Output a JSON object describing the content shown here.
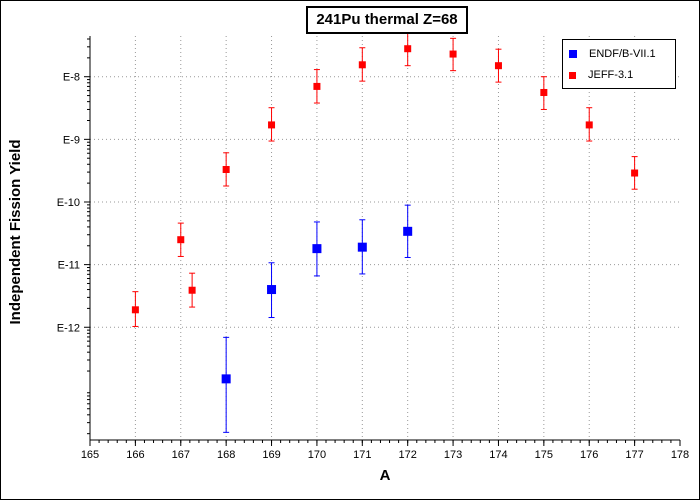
{
  "chart_data": {
    "type": "scatter",
    "title": "241Pu thermal Z=68",
    "xlabel": "A",
    "ylabel": "Independent Fission Yield",
    "xlim": [
      165,
      178
    ],
    "ylim_exponent": [
      -13.8,
      -7.35
    ],
    "yscale": "log",
    "grid": true,
    "legend_position": "top-right",
    "x_ticks": [
      "165",
      "166",
      "167",
      "168",
      "169",
      "170",
      "171",
      "172",
      "173",
      "174",
      "175",
      "176",
      "177",
      "178"
    ],
    "y_ticks": [
      {
        "exp": -8,
        "label": "E-8"
      },
      {
        "exp": -9,
        "label": "E-9"
      },
      {
        "exp": -10,
        "label": "E-10"
      },
      {
        "exp": -11,
        "label": "E-11"
      },
      {
        "exp": -12,
        "label": "E-12"
      }
    ],
    "series": [
      {
        "name": "ENDF/B-VII.1",
        "color": "#0000ff",
        "marker": "square-large",
        "points": [
          {
            "x": 168,
            "y": 1.5e-13,
            "y_low": 2.1e-14,
            "y_high": 6.9e-13
          },
          {
            "x": 169,
            "y": 4e-12,
            "y_low": 1.43e-12,
            "y_high": 1.07e-11
          },
          {
            "x": 170,
            "y": 1.8e-11,
            "y_low": 6.6e-12,
            "y_high": 4.8e-11
          },
          {
            "x": 171,
            "y": 1.9e-11,
            "y_low": 7.1e-12,
            "y_high": 5.2e-11
          },
          {
            "x": 172,
            "y": 3.4e-11,
            "y_low": 1.3e-11,
            "y_high": 8.9e-11
          }
        ]
      },
      {
        "name": "JEFF-3.1",
        "color": "#ff0000",
        "marker": "square-small",
        "points": [
          {
            "x": 166,
            "y": 1.9e-12,
            "y_low": 1.03e-12,
            "y_high": 3.7e-12
          },
          {
            "x": 167,
            "y": 2.5e-11,
            "y_low": 1.35e-11,
            "y_high": 4.6e-11
          },
          {
            "x": 167.25,
            "y": 3.9e-12,
            "y_low": 2.1e-12,
            "y_high": 7.3e-12
          },
          {
            "x": 168,
            "y": 3.3e-10,
            "y_low": 1.8e-10,
            "y_high": 6.1e-10
          },
          {
            "x": 169,
            "y": 1.7e-09,
            "y_low": 9.4e-10,
            "y_high": 3.2e-09
          },
          {
            "x": 170,
            "y": 7e-09,
            "y_low": 3.8e-09,
            "y_high": 1.3e-08
          },
          {
            "x": 171,
            "y": 1.55e-08,
            "y_low": 8.5e-09,
            "y_high": 2.9e-08
          },
          {
            "x": 172,
            "y": 2.8e-08,
            "y_low": 1.5e-08,
            "y_high": 4.95e-08
          },
          {
            "x": 173,
            "y": 2.3e-08,
            "y_low": 1.25e-08,
            "y_high": 4.1e-08
          },
          {
            "x": 174,
            "y": 1.5e-08,
            "y_low": 8.2e-09,
            "y_high": 2.75e-08
          },
          {
            "x": 175,
            "y": 5.6e-09,
            "y_low": 3e-09,
            "y_high": 1e-08
          },
          {
            "x": 176,
            "y": 1.7e-09,
            "y_low": 9.4e-10,
            "y_high": 3.2e-09
          },
          {
            "x": 177,
            "y": 2.9e-10,
            "y_low": 1.6e-10,
            "y_high": 5.3e-10
          }
        ]
      }
    ]
  }
}
